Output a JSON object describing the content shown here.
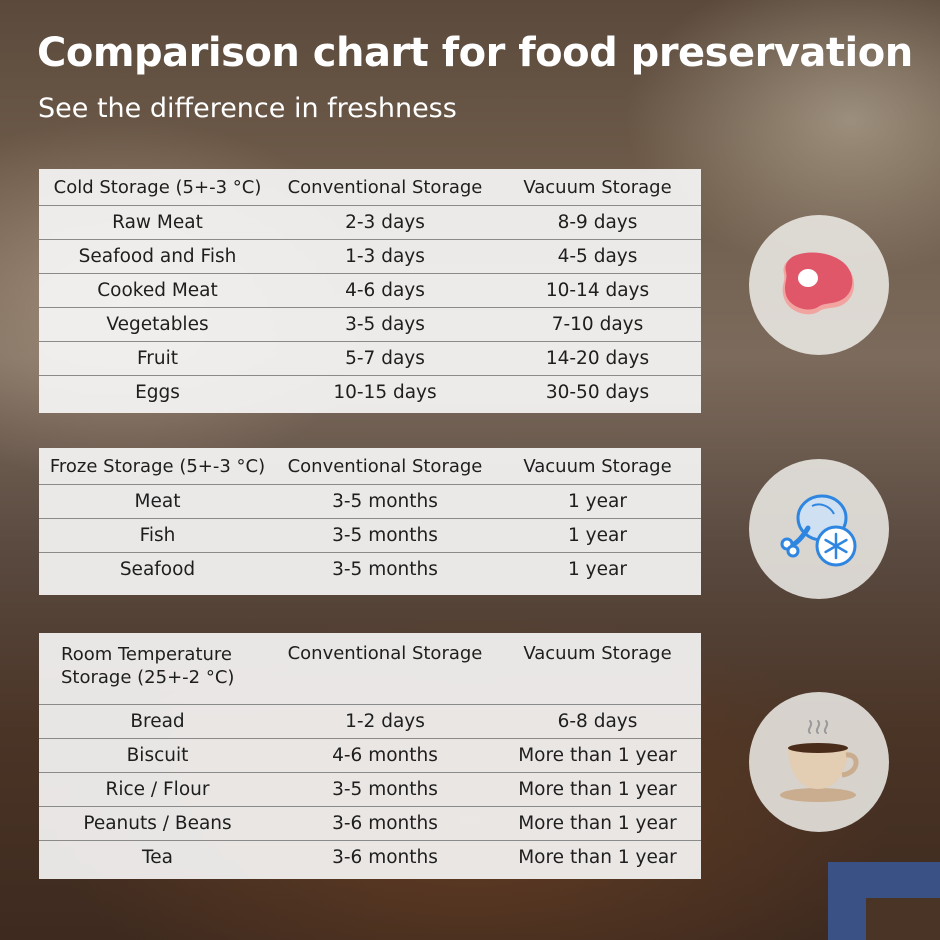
{
  "title": "Comparison chart for food preservation",
  "subtitle": "See the difference in freshness",
  "tables": {
    "cold": {
      "headers": [
        "Cold Storage (5+-3 °C)",
        "Conventional Storage",
        "Vacuum Storage"
      ],
      "rows": [
        [
          "Raw Meat",
          "2-3 days",
          "8-9 days"
        ],
        [
          "Seafood and Fish",
          "1-3 days",
          "4-5 days"
        ],
        [
          "Cooked Meat",
          "4-6 days",
          "10-14 days"
        ],
        [
          "Vegetables",
          "3-5 days",
          "7-10 days"
        ],
        [
          "Fruit",
          "5-7 days",
          "14-20 days"
        ],
        [
          "Eggs",
          "10-15 days",
          "30-50 days"
        ]
      ]
    },
    "frozen": {
      "headers": [
        "Froze Storage (5+-3 °C)",
        "Conventional Storage",
        "Vacuum Storage"
      ],
      "rows": [
        [
          "Meat",
          "3-5 months",
          "1 year"
        ],
        [
          "Fish",
          "3-5 months",
          "1 year"
        ],
        [
          "Seafood",
          "3-5 months",
          "1 year"
        ]
      ]
    },
    "room": {
      "headers": [
        "Room Temperature Storage (25+-2 °C)",
        "Conventional Storage",
        "Vacuum Storage"
      ],
      "rows": [
        [
          "Bread",
          "1-2 days",
          "6-8 days"
        ],
        [
          "Biscuit",
          "4-6 months",
          "More than 1 year"
        ],
        [
          "Rice / Flour",
          "3-5 months",
          "More than 1 year"
        ],
        [
          "Peanuts / Beans",
          "3-6 months",
          "More than 1 year"
        ],
        [
          "Tea",
          "3-6 months",
          "More than 1 year"
        ]
      ]
    }
  },
  "icons": {
    "cold": "steak-icon",
    "frozen": "frozen-meat-snowflake-icon",
    "room": "coffee-cup-icon"
  },
  "colors": {
    "title": "#ffffff",
    "meat": "#e0576a",
    "frozen_blue": "#2f86e0",
    "coffee": "#c9ad8e",
    "frame": "#3a5185"
  }
}
